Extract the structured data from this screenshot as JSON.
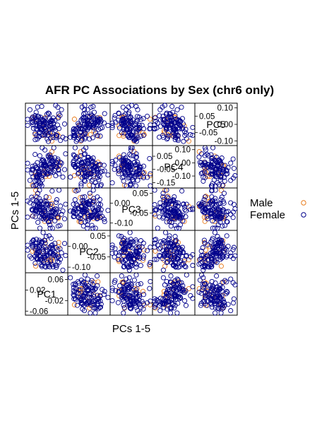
{
  "chart_data": {
    "type": "scatter",
    "title": "AFR PC Associations by Sex (chr6 only)",
    "xlabel": "PCs 1-5",
    "ylabel": "PCs 1-5",
    "legend": {
      "placement": "right",
      "entries": [
        {
          "label": "Male",
          "color": "#e87d1e"
        },
        {
          "label": "Female",
          "color": "#00008b"
        }
      ]
    },
    "variables": [
      "PC1",
      "PC2",
      "PC3",
      "PC4",
      "PC5"
    ],
    "diagonal_ticks": {
      "PC1": [
        "0.06",
        "0.02",
        "-0.02",
        "-0.06"
      ],
      "PC2": [
        "0.05",
        "0.00",
        "-0.05",
        "-0.10"
      ],
      "PC3": [
        "0.05",
        "0.00",
        "-0.05",
        "-0.10"
      ],
      "PC4": [
        "0.10",
        "0.05",
        "0.00",
        "-0.05",
        "-0.10",
        "-0.15"
      ],
      "PC5": [
        "0.10",
        "0.05",
        "0.00",
        "-0.05",
        "-0.10"
      ]
    },
    "ranges": {
      "PC1": [
        -0.07,
        0.08
      ],
      "PC2": [
        -0.12,
        0.07
      ],
      "PC3": [
        -0.13,
        0.07
      ],
      "PC4": [
        -0.18,
        0.12
      ],
      "PC5": [
        -0.12,
        0.12
      ]
    },
    "grid": false,
    "n_female": 110,
    "n_male": 14
  }
}
